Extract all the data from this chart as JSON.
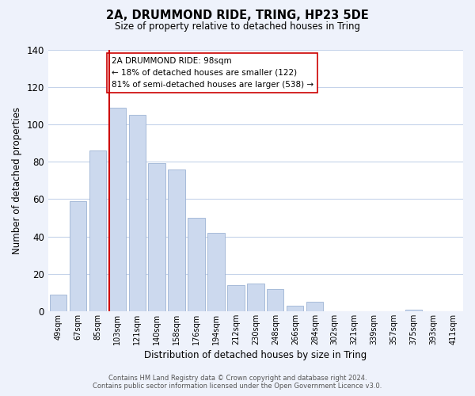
{
  "title": "2A, DRUMMOND RIDE, TRING, HP23 5DE",
  "subtitle": "Size of property relative to detached houses in Tring",
  "xlabel": "Distribution of detached houses by size in Tring",
  "ylabel": "Number of detached properties",
  "bar_labels": [
    "49sqm",
    "67sqm",
    "85sqm",
    "103sqm",
    "121sqm",
    "140sqm",
    "158sqm",
    "176sqm",
    "194sqm",
    "212sqm",
    "230sqm",
    "248sqm",
    "266sqm",
    "284sqm",
    "302sqm",
    "321sqm",
    "339sqm",
    "357sqm",
    "375sqm",
    "393sqm",
    "411sqm"
  ],
  "bar_values": [
    9,
    59,
    86,
    109,
    105,
    79,
    76,
    50,
    42,
    14,
    15,
    12,
    3,
    5,
    0,
    0,
    0,
    0,
    1,
    0,
    0
  ],
  "bar_color": "#ccd9ee",
  "bar_edge_color": "#9db3d4",
  "vline_index": 3,
  "vline_color": "#cc0000",
  "annotation_text": "2A DRUMMOND RIDE: 98sqm\n← 18% of detached houses are smaller (122)\n81% of semi-detached houses are larger (538) →",
  "annotation_box_color": "#ffffff",
  "annotation_box_edge": "#cc0000",
  "ylim": [
    0,
    140
  ],
  "yticks": [
    0,
    20,
    40,
    60,
    80,
    100,
    120,
    140
  ],
  "footer": "Contains HM Land Registry data © Crown copyright and database right 2024.\nContains public sector information licensed under the Open Government Licence v3.0.",
  "bg_color": "#eef2fb",
  "plot_bg_color": "#ffffff",
  "grid_color": "#c5d3ea"
}
